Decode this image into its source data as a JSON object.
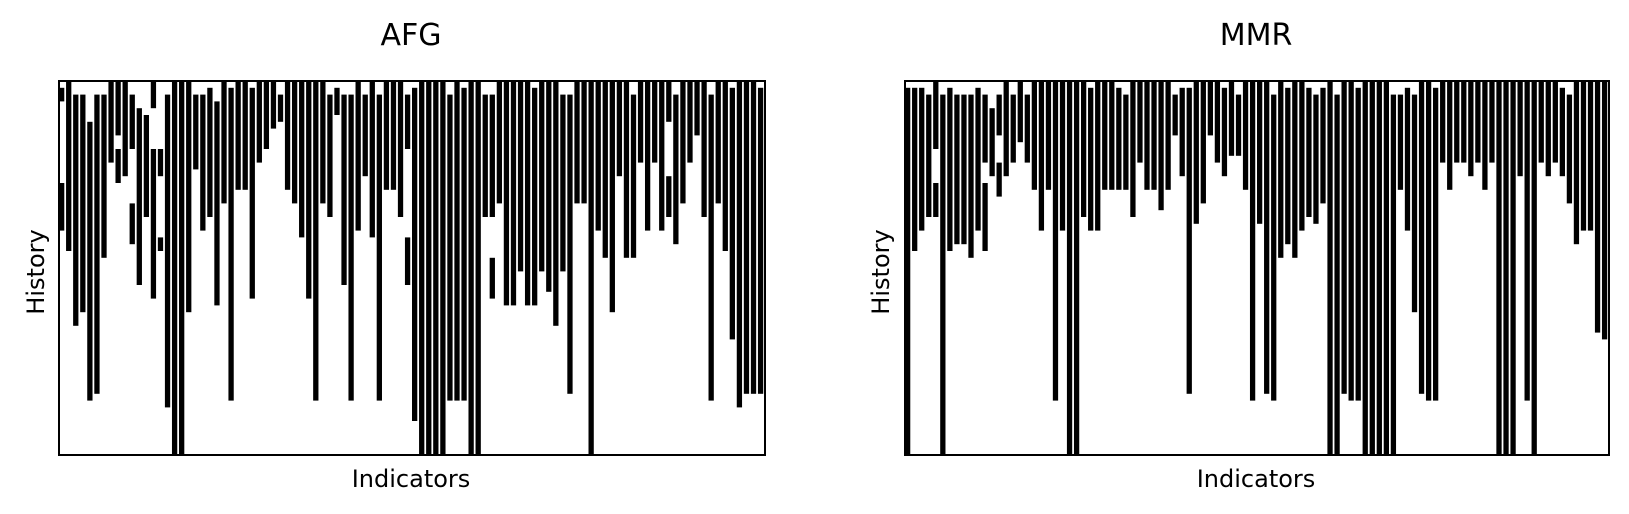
{
  "chart_data": [
    {
      "type": "heatmap",
      "title": "AFG",
      "xlabel": "Indicators",
      "ylabel": "History",
      "grid": false,
      "colors": {
        "filled": "#000000",
        "empty": "#ffffff"
      },
      "n_cols": 100,
      "n_rows": 55,
      "columns": [
        [
          [
            1,
            3
          ],
          [
            15,
            22
          ]
        ],
        [
          [
            0,
            25
          ]
        ],
        [
          [
            2,
            36
          ]
        ],
        [
          [
            2,
            34
          ]
        ],
        [
          [
            6,
            47
          ]
        ],
        [
          [
            2,
            46
          ]
        ],
        [
          [
            2,
            26
          ]
        ],
        [
          [
            0,
            12
          ]
        ],
        [
          [
            0,
            8
          ],
          [
            10,
            15
          ]
        ],
        [
          [
            0,
            14
          ]
        ],
        [
          [
            2,
            10
          ],
          [
            18,
            24
          ]
        ],
        [
          [
            4,
            30
          ]
        ],
        [
          [
            5,
            20
          ]
        ],
        [
          [
            0,
            4
          ],
          [
            10,
            32
          ]
        ],
        [
          [
            10,
            14
          ],
          [
            23,
            25
          ]
        ],
        [
          [
            2,
            48
          ]
        ],
        [
          [
            0,
            55
          ]
        ],
        [
          [
            0,
            55
          ]
        ],
        [
          [
            0,
            34
          ]
        ],
        [
          [
            2,
            13
          ]
        ],
        [
          [
            2,
            22
          ]
        ],
        [
          [
            1,
            20
          ]
        ],
        [
          [
            3,
            33
          ]
        ],
        [
          [
            0,
            18
          ]
        ],
        [
          [
            1,
            47
          ]
        ],
        [
          [
            0,
            16
          ]
        ],
        [
          [
            0,
            16
          ]
        ],
        [
          [
            1,
            32
          ]
        ],
        [
          [
            0,
            12
          ]
        ],
        [
          [
            0,
            10
          ]
        ],
        [
          [
            0,
            7
          ]
        ],
        [
          [
            2,
            6
          ]
        ],
        [
          [
            0,
            16
          ]
        ],
        [
          [
            0,
            18
          ]
        ],
        [
          [
            0,
            23
          ]
        ],
        [
          [
            0,
            32
          ]
        ],
        [
          [
            0,
            47
          ]
        ],
        [
          [
            0,
            18
          ]
        ],
        [
          [
            2,
            20
          ]
        ],
        [
          [
            1,
            5
          ]
        ],
        [
          [
            2,
            30
          ]
        ],
        [
          [
            2,
            47
          ]
        ],
        [
          [
            0,
            22
          ]
        ],
        [
          [
            2,
            14
          ]
        ],
        [
          [
            0,
            23
          ]
        ],
        [
          [
            2,
            47
          ]
        ],
        [
          [
            0,
            16
          ]
        ],
        [
          [
            0,
            16
          ]
        ],
        [
          [
            0,
            20
          ]
        ],
        [
          [
            2,
            10
          ],
          [
            23,
            30
          ]
        ],
        [
          [
            1,
            50
          ]
        ],
        [
          [
            0,
            55
          ]
        ],
        [
          [
            0,
            55
          ]
        ],
        [
          [
            0,
            55
          ]
        ],
        [
          [
            0,
            55
          ]
        ],
        [
          [
            2,
            47
          ]
        ],
        [
          [
            0,
            47
          ]
        ],
        [
          [
            1,
            47
          ]
        ],
        [
          [
            0,
            55
          ]
        ],
        [
          [
            0,
            55
          ]
        ],
        [
          [
            2,
            20
          ]
        ],
        [
          [
            2,
            20
          ],
          [
            26,
            32
          ]
        ],
        [
          [
            0,
            18
          ]
        ],
        [
          [
            0,
            33
          ]
        ],
        [
          [
            0,
            33
          ]
        ],
        [
          [
            0,
            28
          ]
        ],
        [
          [
            0,
            33
          ]
        ],
        [
          [
            1,
            33
          ]
        ],
        [
          [
            0,
            28
          ]
        ],
        [
          [
            0,
            31
          ]
        ],
        [
          [
            0,
            36
          ]
        ],
        [
          [
            2,
            28
          ]
        ],
        [
          [
            2,
            46
          ]
        ],
        [
          [
            0,
            18
          ]
        ],
        [
          [
            0,
            18
          ]
        ],
        [
          [
            0,
            55
          ]
        ],
        [
          [
            0,
            22
          ]
        ],
        [
          [
            0,
            26
          ]
        ],
        [
          [
            0,
            34
          ]
        ],
        [
          [
            0,
            14
          ]
        ],
        [
          [
            0,
            26
          ]
        ],
        [
          [
            2,
            26
          ]
        ],
        [
          [
            0,
            12
          ]
        ],
        [
          [
            0,
            22
          ]
        ],
        [
          [
            0,
            12
          ]
        ],
        [
          [
            0,
            22
          ]
        ],
        [
          [
            0,
            6
          ],
          [
            14,
            20
          ]
        ],
        [
          [
            2,
            24
          ]
        ],
        [
          [
            0,
            18
          ]
        ],
        [
          [
            0,
            12
          ]
        ],
        [
          [
            0,
            8
          ]
        ],
        [
          [
            0,
            20
          ]
        ],
        [
          [
            2,
            47
          ]
        ],
        [
          [
            0,
            18
          ]
        ],
        [
          [
            0,
            25
          ]
        ],
        [
          [
            1,
            38
          ]
        ],
        [
          [
            0,
            48
          ]
        ],
        [
          [
            0,
            46
          ]
        ],
        [
          [
            0,
            46
          ]
        ],
        [
          [
            1,
            46
          ]
        ]
      ]
    },
    {
      "type": "heatmap",
      "title": "MMR",
      "xlabel": "Indicators",
      "ylabel": "History",
      "grid": false,
      "colors": {
        "filled": "#000000",
        "empty": "#ffffff"
      },
      "n_cols": 100,
      "n_rows": 55,
      "columns": [
        [
          [
            1,
            55
          ]
        ],
        [
          [
            1,
            25
          ]
        ],
        [
          [
            1,
            22
          ]
        ],
        [
          [
            2,
            20
          ]
        ],
        [
          [
            0,
            10
          ],
          [
            15,
            20
          ]
        ],
        [
          [
            2,
            55
          ]
        ],
        [
          [
            1,
            25
          ]
        ],
        [
          [
            2,
            24
          ]
        ],
        [
          [
            2,
            24
          ]
        ],
        [
          [
            2,
            26
          ]
        ],
        [
          [
            1,
            22
          ]
        ],
        [
          [
            2,
            12
          ],
          [
            15,
            25
          ]
        ],
        [
          [
            4,
            14
          ]
        ],
        [
          [
            2,
            8
          ],
          [
            12,
            17
          ]
        ],
        [
          [
            0,
            14
          ]
        ],
        [
          [
            2,
            12
          ]
        ],
        [
          [
            0,
            9
          ]
        ],
        [
          [
            2,
            12
          ]
        ],
        [
          [
            0,
            16
          ]
        ],
        [
          [
            0,
            22
          ]
        ],
        [
          [
            0,
            16
          ]
        ],
        [
          [
            0,
            47
          ]
        ],
        [
          [
            0,
            22
          ]
        ],
        [
          [
            0,
            55
          ]
        ],
        [
          [
            0,
            55
          ]
        ],
        [
          [
            0,
            20
          ]
        ],
        [
          [
            1,
            22
          ]
        ],
        [
          [
            0,
            22
          ]
        ],
        [
          [
            0,
            16
          ]
        ],
        [
          [
            0,
            16
          ]
        ],
        [
          [
            1,
            16
          ]
        ],
        [
          [
            2,
            16
          ]
        ],
        [
          [
            0,
            20
          ]
        ],
        [
          [
            0,
            12
          ]
        ],
        [
          [
            0,
            16
          ]
        ],
        [
          [
            0,
            16
          ]
        ],
        [
          [
            0,
            19
          ]
        ],
        [
          [
            0,
            16
          ]
        ],
        [
          [
            2,
            8
          ]
        ],
        [
          [
            1,
            14
          ]
        ],
        [
          [
            1,
            46
          ]
        ],
        [
          [
            0,
            21
          ]
        ],
        [
          [
            0,
            18
          ]
        ],
        [
          [
            0,
            8
          ]
        ],
        [
          [
            0,
            12
          ]
        ],
        [
          [
            1,
            14
          ]
        ],
        [
          [
            0,
            11
          ]
        ],
        [
          [
            2,
            11
          ]
        ],
        [
          [
            0,
            16
          ]
        ],
        [
          [
            0,
            47
          ]
        ],
        [
          [
            0,
            21
          ]
        ],
        [
          [
            0,
            46
          ]
        ],
        [
          [
            2,
            47
          ]
        ],
        [
          [
            0,
            26
          ]
        ],
        [
          [
            1,
            24
          ]
        ],
        [
          [
            0,
            26
          ]
        ],
        [
          [
            0,
            22
          ]
        ],
        [
          [
            1,
            20
          ]
        ],
        [
          [
            2,
            21
          ]
        ],
        [
          [
            1,
            18
          ]
        ],
        [
          [
            0,
            55
          ]
        ],
        [
          [
            2,
            55
          ]
        ],
        [
          [
            0,
            46
          ]
        ],
        [
          [
            0,
            47
          ]
        ],
        [
          [
            1,
            47
          ]
        ],
        [
          [
            0,
            55
          ]
        ],
        [
          [
            0,
            55
          ]
        ],
        [
          [
            0,
            55
          ]
        ],
        [
          [
            0,
            55
          ]
        ],
        [
          [
            2,
            55
          ]
        ],
        [
          [
            2,
            16
          ]
        ],
        [
          [
            1,
            22
          ]
        ],
        [
          [
            2,
            34
          ]
        ],
        [
          [
            0,
            46
          ]
        ],
        [
          [
            0,
            47
          ]
        ],
        [
          [
            1,
            47
          ]
        ],
        [
          [
            0,
            12
          ]
        ],
        [
          [
            0,
            16
          ]
        ],
        [
          [
            0,
            12
          ]
        ],
        [
          [
            0,
            12
          ]
        ],
        [
          [
            0,
            14
          ]
        ],
        [
          [
            0,
            12
          ]
        ],
        [
          [
            0,
            16
          ]
        ],
        [
          [
            0,
            12
          ]
        ],
        [
          [
            0,
            55
          ]
        ],
        [
          [
            0,
            55
          ]
        ],
        [
          [
            0,
            55
          ]
        ],
        [
          [
            0,
            14
          ]
        ],
        [
          [
            0,
            47
          ]
        ],
        [
          [
            0,
            55
          ]
        ],
        [
          [
            0,
            12
          ]
        ],
        [
          [
            0,
            14
          ]
        ],
        [
          [
            0,
            12
          ]
        ],
        [
          [
            1,
            14
          ]
        ],
        [
          [
            2,
            18
          ]
        ],
        [
          [
            0,
            24
          ]
        ],
        [
          [
            0,
            22
          ]
        ],
        [
          [
            0,
            22
          ]
        ],
        [
          [
            0,
            37
          ]
        ],
        [
          [
            0,
            38
          ]
        ]
      ]
    }
  ]
}
